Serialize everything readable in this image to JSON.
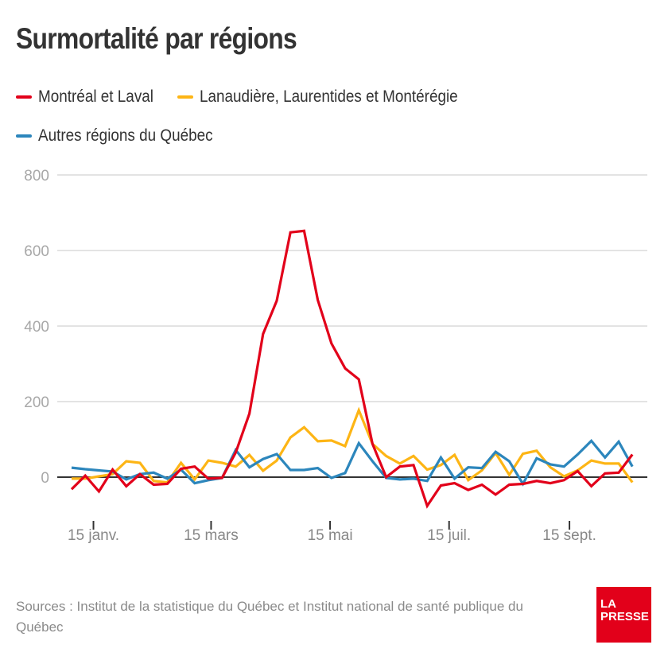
{
  "header": {
    "title": "Surmortalité par régions"
  },
  "legend": [
    {
      "label": "Montréal et Laval",
      "color": "#e2001a"
    },
    {
      "label": "Lanaudière, Laurentides et Montérégie",
      "color": "#fdb515"
    },
    {
      "label": "Autres régions du Québec",
      "color": "#2c86bc"
    }
  ],
  "footer": {
    "sources": "Sources : Institut de la statistique du Québec et Institut national de santé publique du Québec"
  },
  "logo": {
    "line1": "LA",
    "line2": "PRESSE",
    "color": "#e2001a"
  },
  "chart_data": {
    "type": "line",
    "title": "Surmortalité par régions",
    "xlabel": "",
    "ylabel": "",
    "ylim": [
      -100,
      800
    ],
    "yticks": [
      0,
      200,
      400,
      600,
      800
    ],
    "ytick_labels": [
      "0",
      "200",
      "400",
      "600",
      "800"
    ],
    "grid": true,
    "legend_position": "top-left",
    "x_unit": "week index (weekly, starting early January)",
    "xticks": [
      {
        "label": "15 janv.",
        "week": 1.6
      },
      {
        "label": "15 mars",
        "week": 10.2
      },
      {
        "label": "15 mai",
        "week": 18.9
      },
      {
        "label": "15 juil.",
        "week": 27.6
      },
      {
        "label": "15 sept.",
        "week": 36.4
      }
    ],
    "x_count": 42,
    "series": [
      {
        "name": "Montréal et Laval",
        "color": "#e2001a",
        "values": [
          -32,
          4,
          -38,
          20,
          -24,
          8,
          -20,
          -18,
          22,
          28,
          -4,
          -2,
          65,
          168,
          379,
          467,
          648,
          652,
          469,
          354,
          288,
          259,
          88,
          0,
          28,
          32,
          -76,
          -22,
          -16,
          -34,
          -20,
          -46,
          -20,
          -18,
          -10,
          -16,
          -8,
          16,
          -24,
          10,
          12,
          60
        ]
      },
      {
        "name": "Lanaudière, Laurentides et Montérégie",
        "color": "#fdb515",
        "values": [
          -4,
          -4,
          2,
          8,
          42,
          38,
          -10,
          -14,
          38,
          -6,
          44,
          38,
          28,
          59,
          17,
          44,
          105,
          132,
          95,
          97,
          82,
          177,
          88,
          56,
          36,
          56,
          20,
          32,
          59,
          -8,
          18,
          64,
          6,
          62,
          70,
          26,
          2,
          18,
          44,
          36,
          36,
          -14
        ]
      },
      {
        "name": "Autres régions du Québec",
        "color": "#2c86bc",
        "values": [
          25,
          21,
          18,
          15,
          -6,
          8,
          12,
          -4,
          20,
          -16,
          -8,
          -2,
          72,
          26,
          48,
          61,
          19,
          19,
          24,
          -2,
          11,
          90,
          42,
          -2,
          -6,
          -4,
          -10,
          52,
          -4,
          26,
          24,
          67,
          42,
          -18,
          50,
          34,
          28,
          60,
          96,
          52,
          94,
          28
        ]
      }
    ]
  }
}
